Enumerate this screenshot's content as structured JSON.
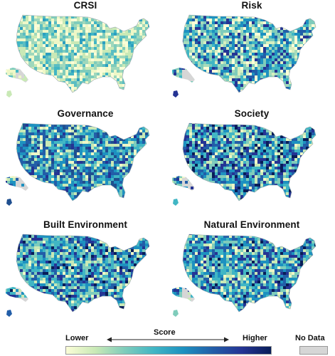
{
  "panels": [
    {
      "title": "CRSI",
      "palette": [
        "#fbfdd7",
        "#eef7c7",
        "#c9e9b6",
        "#9fd8bc",
        "#7fccbb",
        "#5bbdc2",
        "#41b6c4",
        "#2c9fc0"
      ],
      "weights": [
        3,
        3,
        3,
        3,
        3,
        2,
        2,
        1
      ]
    },
    {
      "title": "Risk",
      "palette": [
        "#fbfdd7",
        "#d8efc0",
        "#a6dbbb",
        "#7fccbb",
        "#41b6c4",
        "#1d91c0",
        "#225ea8",
        "#253494"
      ],
      "weights": [
        2,
        2,
        2,
        3,
        3,
        3,
        2,
        2
      ]
    },
    {
      "title": "Governance",
      "palette": [
        "#eef7c7",
        "#c9e9b6",
        "#7fccbb",
        "#41b6c4",
        "#1d91c0",
        "#225ea8",
        "#1f4f8f",
        "#253494"
      ],
      "weights": [
        1,
        2,
        2,
        3,
        4,
        4,
        2,
        1
      ]
    },
    {
      "title": "Society",
      "palette": [
        "#eef7c7",
        "#c9e9b6",
        "#7fccbb",
        "#41b6c4",
        "#1d91c0",
        "#225ea8",
        "#253494",
        "#081d58"
      ],
      "weights": [
        1,
        2,
        3,
        3,
        3,
        3,
        3,
        2
      ]
    },
    {
      "title": "Built Environment",
      "palette": [
        "#eef7c7",
        "#c9e9b6",
        "#7fccbb",
        "#41b6c4",
        "#1d91c0",
        "#225ea8",
        "#253494",
        "#081d58"
      ],
      "weights": [
        1,
        2,
        3,
        4,
        4,
        3,
        2,
        1
      ]
    },
    {
      "title": "Natural Environment",
      "palette": [
        "#eef7c7",
        "#c9e9b6",
        "#7fccbb",
        "#41b6c4",
        "#1d91c0",
        "#225ea8",
        "#253494",
        "#081d58"
      ],
      "weights": [
        1,
        2,
        3,
        4,
        4,
        3,
        2,
        1
      ]
    }
  ],
  "legend": {
    "lower": "Lower",
    "score": "Score",
    "higher": "Higher",
    "no_data": "No Data",
    "no_data_color": "#d6d6d6"
  }
}
